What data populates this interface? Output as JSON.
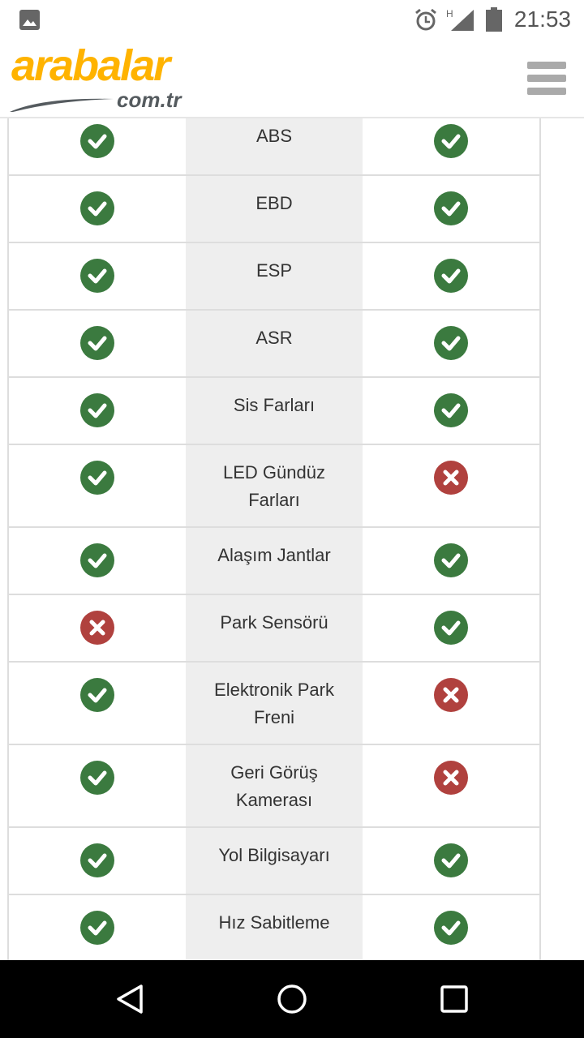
{
  "status_bar": {
    "time": "21:53",
    "icons": [
      "image-icon",
      "alarm-icon",
      "signal-h-icon",
      "battery-icon"
    ]
  },
  "header": {
    "logo_main": "arabalar",
    "logo_sub": "com.tr",
    "menu_icon": "hamburger-menu-icon"
  },
  "colors": {
    "check": "#3b7a3f",
    "cross": "#b0413e",
    "logo": "#ffb300"
  },
  "features": [
    {
      "label": "ABS",
      "left": true,
      "right": true
    },
    {
      "label": "EBD",
      "left": true,
      "right": true
    },
    {
      "label": "ESP",
      "left": true,
      "right": true
    },
    {
      "label": "ASR",
      "left": true,
      "right": true
    },
    {
      "label": "Sis Farları",
      "left": true,
      "right": true
    },
    {
      "label": "LED Gündüz Farları",
      "left": true,
      "right": false
    },
    {
      "label": "Alaşım Jantlar",
      "left": true,
      "right": true
    },
    {
      "label": "Park Sensörü",
      "left": false,
      "right": true
    },
    {
      "label": "Elektronik Park Freni",
      "left": true,
      "right": false
    },
    {
      "label": "Geri Görüş Kamerası",
      "left": true,
      "right": false
    },
    {
      "label": "Yol Bilgisayarı",
      "left": true,
      "right": true
    },
    {
      "label": "Hız Sabitleme",
      "left": true,
      "right": true
    }
  ],
  "nav_bar": {
    "icons": [
      "back-icon",
      "home-icon",
      "recents-icon"
    ]
  }
}
